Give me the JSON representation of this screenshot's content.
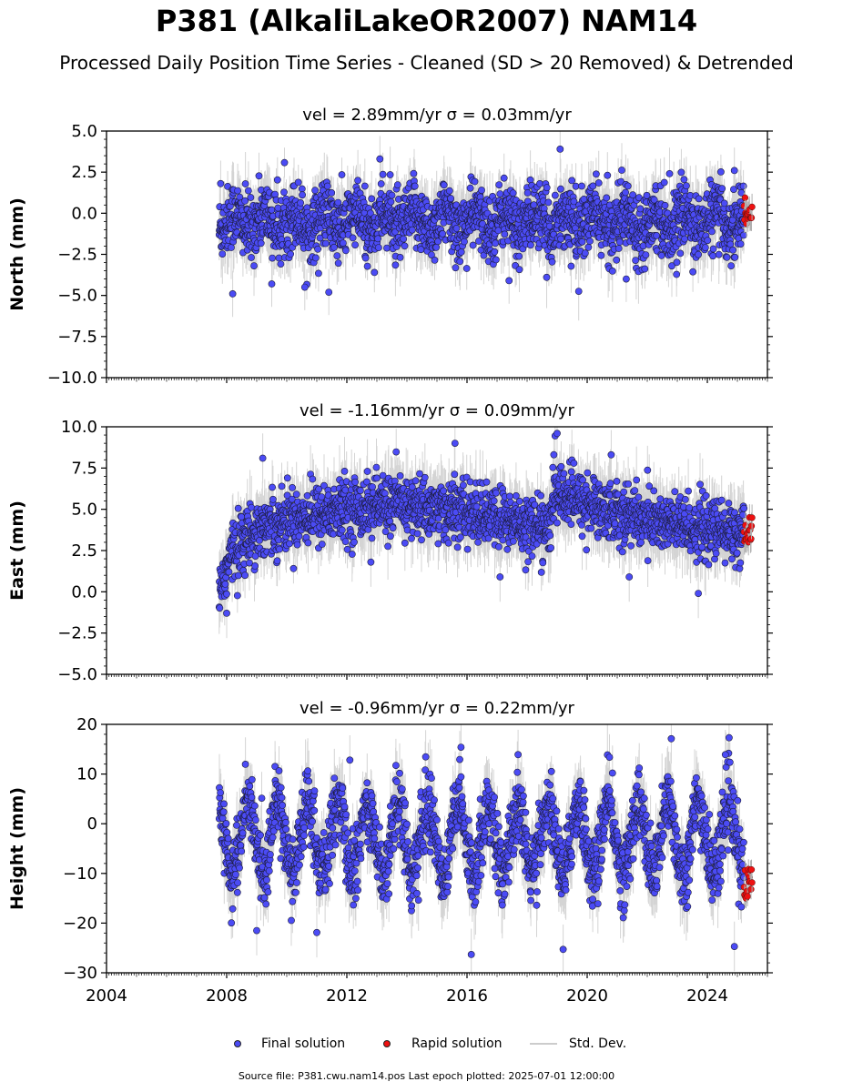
{
  "figure": {
    "title": "P381 (AlkaliLakeOR2007) NAM14",
    "subtitle": "Processed Daily Position Time Series - Cleaned (SD > 20 Removed) & Detrended",
    "footer": "Source file: P381.cwu.nam14.pos  Last epoch plotted: 2025-07-01 12:00:00"
  },
  "legend": {
    "final": "Final solution",
    "rapid": "Rapid solution",
    "std": "Std. Dev."
  },
  "colors": {
    "final": "#4b4bf5",
    "rapid": "#ee1111",
    "errorbar": "#b0b0b0",
    "marker_edge": "#1c1c3a"
  },
  "chart_data": [
    {
      "type": "scatter",
      "title": "vel = 2.89mm/yr   σ = 0.03mm/yr",
      "ylabel": "North (mm)",
      "xlim": [
        2004,
        2026
      ],
      "ylim": [
        -10,
        5
      ],
      "yticks": [
        5.0,
        2.5,
        0.0,
        -2.5,
        -5.0,
        -7.5,
        -10.0
      ],
      "ytick_labels": [
        "5.0",
        "2.5",
        "0.0",
        "−2.5",
        "−5.0",
        "−7.5",
        "−10.0"
      ],
      "series": [
        {
          "values": {
            "start": 2007.75,
            "end": 2025.22,
            "mean": -0.5,
            "trend": 0.0,
            "annual": 0.5,
            "noise": 1.0,
            "sd": 1.4
          }
        },
        {
          "values": {
            "start": 2025.22,
            "end": 2025.5,
            "mean": 0.0,
            "noise": 0.3,
            "sd": 0.8
          }
        }
      ],
      "outliers": [
        [
          2009.5,
          -4.3
        ],
        [
          2010.6,
          -4.5
        ],
        [
          2011.4,
          -4.8
        ],
        [
          2013.1,
          3.3
        ],
        [
          2019.1,
          3.9
        ],
        [
          2024.9,
          2.6
        ],
        [
          2017.4,
          -4.1
        ],
        [
          2021.3,
          -4.0
        ],
        [
          2007.8,
          1.8
        ],
        [
          2008.2,
          -4.9
        ]
      ],
      "x_ticks_shown": false
    },
    {
      "type": "scatter",
      "title": "vel = -1.16mm/yr   σ = 0.09mm/yr",
      "ylabel": "East (mm)",
      "xlim": [
        2004,
        2026
      ],
      "ylim": [
        -5,
        10
      ],
      "yticks": [
        10.0,
        7.5,
        5.0,
        2.5,
        0.0,
        -2.5,
        -5.0
      ],
      "ytick_labels": [
        "10.0",
        "7.5",
        "5.0",
        "2.5",
        "0.0",
        "−2.5",
        "−5.0"
      ],
      "series": [
        {
          "values": {
            "start": 2007.75,
            "end": 2025.22,
            "segments": [
              [
                2007.75,
                0.0
              ],
              [
                2008.2,
                2.5
              ],
              [
                2009.0,
                3.8
              ],
              [
                2010.5,
                4.6
              ],
              [
                2013.5,
                5.3
              ],
              [
                2016.0,
                4.8
              ],
              [
                2018.8,
                3.8
              ],
              [
                2018.85,
                6.1
              ],
              [
                2020.5,
                5.0
              ],
              [
                2023.0,
                4.0
              ],
              [
                2025.22,
                3.5
              ]
            ],
            "noise": 0.9,
            "sd": 1.5
          }
        },
        {
          "values": {
            "start": 2025.22,
            "end": 2025.5,
            "mean": 3.4,
            "noise": 0.4,
            "sd": 0.8
          }
        }
      ],
      "outliers": [
        [
          2009.2,
          8.1
        ],
        [
          2015.6,
          9.0
        ],
        [
          2019.0,
          9.6
        ],
        [
          2020.8,
          8.3
        ],
        [
          2012.8,
          1.8
        ],
        [
          2017.1,
          0.9
        ],
        [
          2021.4,
          0.9
        ],
        [
          2023.7,
          -0.1
        ],
        [
          2008.0,
          -1.3
        ]
      ],
      "x_ticks_shown": false
    },
    {
      "type": "scatter",
      "title": "vel = -0.96mm/yr   σ = 0.22mm/yr",
      "ylabel": "Height (mm)",
      "xlim": [
        2004,
        2026
      ],
      "ylim": [
        -30,
        20
      ],
      "yticks": [
        20,
        10,
        0,
        -10,
        -20,
        -30
      ],
      "ytick_labels": [
        "20",
        "10",
        "0",
        "−10",
        "−20",
        "−30"
      ],
      "xticks": [
        2004,
        2008,
        2012,
        2016,
        2020,
        2024
      ],
      "xtick_labels": [
        "2004",
        "2008",
        "2012",
        "2016",
        "2020",
        "2024"
      ],
      "series": [
        {
          "values": {
            "start": 2007.75,
            "end": 2025.22,
            "mean": -3.0,
            "annual": 7.0,
            "phase": 0.55,
            "noise": 3.5,
            "sd": 5.0
          }
        },
        {
          "values": {
            "start": 2025.22,
            "end": 2025.5,
            "mean": -13.0,
            "noise": 3.0,
            "sd": 2.0
          }
        }
      ],
      "outliers": [
        [
          2012.1,
          12.8
        ],
        [
          2015.8,
          15.4
        ],
        [
          2017.7,
          13.9
        ],
        [
          2022.8,
          17.1
        ],
        [
          2024.6,
          13.9
        ],
        [
          2019.2,
          -25.3
        ],
        [
          2024.9,
          -24.7
        ],
        [
          2009.0,
          -21.5
        ],
        [
          2011.0,
          -21.9
        ]
      ],
      "x_ticks_shown": true
    }
  ]
}
